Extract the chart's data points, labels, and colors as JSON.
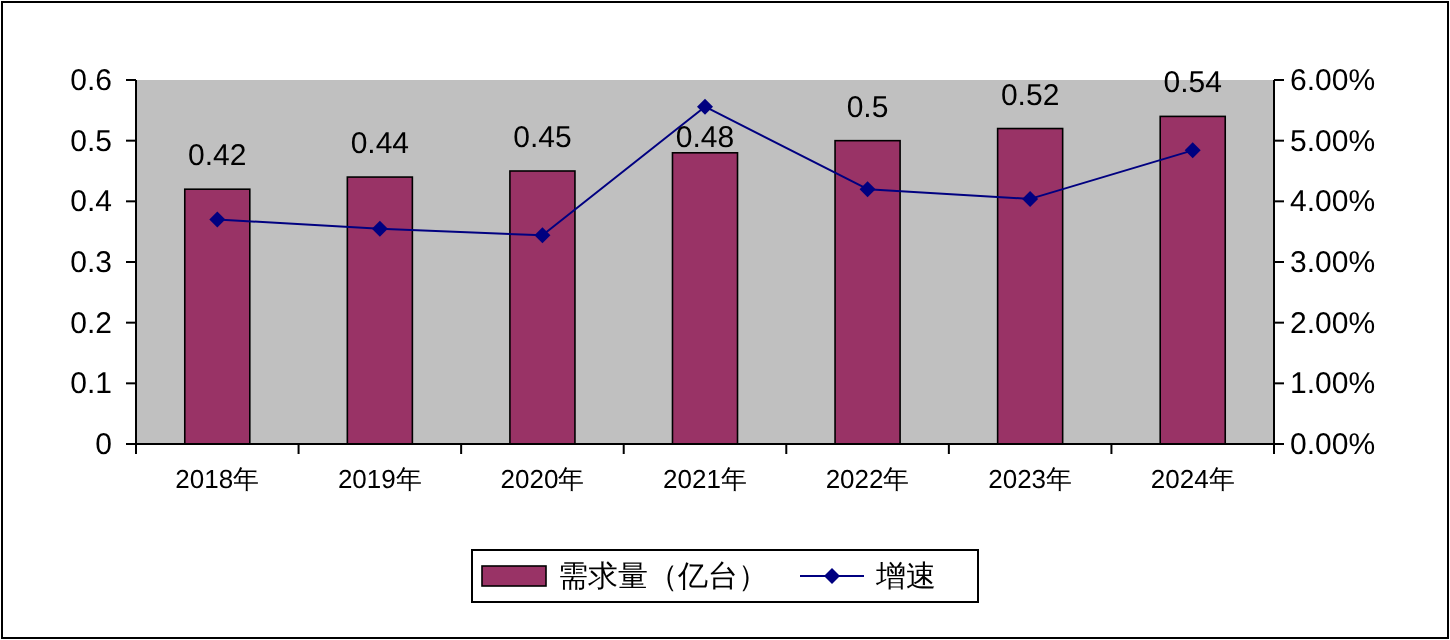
{
  "chart_data": {
    "type": "bar",
    "categories": [
      "2018年",
      "2019年",
      "2020年",
      "2021年",
      "2022年",
      "2023年",
      "2024年"
    ],
    "series": [
      {
        "name": "需求量（亿台）",
        "color": "#993366",
        "values": [
          0.42,
          0.44,
          0.45,
          0.48,
          0.5,
          0.52,
          0.54
        ],
        "value_labels": [
          "0.42",
          "0.44",
          "0.45",
          "0.48",
          "0.5",
          "0.52",
          "0.54"
        ]
      },
      {
        "name": "增速",
        "type": "line",
        "axis": "y2",
        "color": "#000080",
        "values": [
          3.7,
          3.55,
          3.44,
          5.56,
          4.2,
          4.04,
          4.84
        ]
      }
    ],
    "ylim": [
      0,
      0.6
    ],
    "yticks": [
      0,
      0.1,
      0.2,
      0.3,
      0.4,
      0.5,
      0.6
    ],
    "y2lim": [
      0,
      6
    ],
    "y2ticks": [
      {
        "value": 0,
        "label": "0.00%"
      },
      {
        "value": 1,
        "label": "1.00%"
      },
      {
        "value": 2,
        "label": "2.00%"
      },
      {
        "value": 3,
        "label": "3.00%"
      },
      {
        "value": 4,
        "label": "4.00%"
      },
      {
        "value": 5,
        "label": "5.00%"
      },
      {
        "value": 6,
        "label": "6.00%"
      }
    ],
    "marker": "diamond",
    "legend": "bottom",
    "grid": false
  }
}
